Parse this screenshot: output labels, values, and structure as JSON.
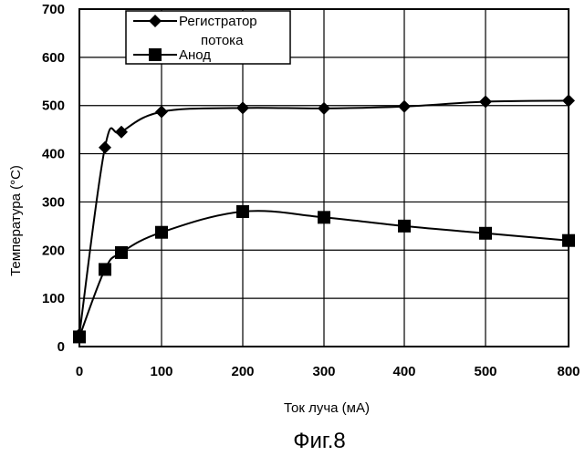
{
  "figure_caption": "Фиг.8",
  "chart_data": {
    "type": "line",
    "xlabel": "Ток луча (мА)",
    "ylabel": "Температура (°C)",
    "ylim": [
      0,
      700
    ],
    "yticks": [
      0,
      100,
      200,
      300,
      400,
      500,
      600,
      700
    ],
    "xtick_labels": [
      "0",
      "100",
      "200",
      "300",
      "400",
      "500",
      "800"
    ],
    "categories": [
      "0",
      "30",
      "50",
      "100",
      "200",
      "300",
      "400",
      "500",
      "800"
    ],
    "grid": true,
    "legend_position": "top-left",
    "series": [
      {
        "name_lines": [
          "Регистратор",
          "потока"
        ],
        "marker": "diamond",
        "values": [
          25,
          413,
          445,
          487,
          495,
          494,
          498,
          508,
          510
        ]
      },
      {
        "name_lines": [
          "Анод"
        ],
        "marker": "square",
        "values": [
          20,
          160,
          195,
          237,
          280,
          268,
          250,
          235,
          220
        ]
      }
    ]
  }
}
